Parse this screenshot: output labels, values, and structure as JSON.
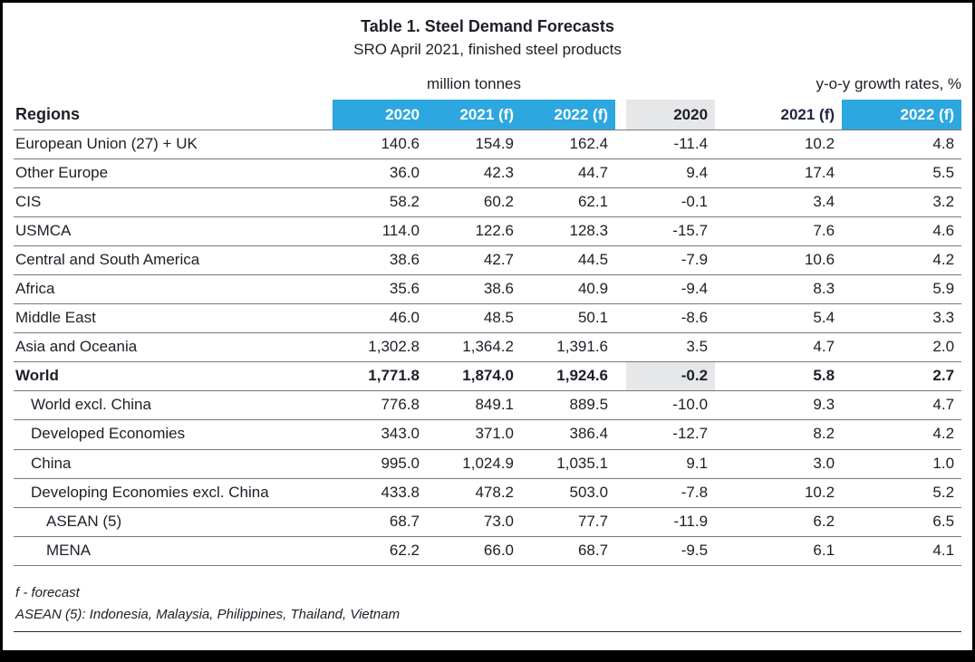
{
  "chart_data": {
    "type": "table",
    "title": "Table 1. Steel Demand Forecasts",
    "subtitle": "SRO April 2021, finished steel products",
    "regions_label": "Regions",
    "group_headers": {
      "tonnes": "million tonnes",
      "growth": "y-o-y growth rates, %"
    },
    "tonnes_columns": [
      "2020",
      "2021 (f)",
      "2022 (f)"
    ],
    "growth_columns": [
      "2020",
      "2021 (f)",
      "2022 (f)"
    ],
    "rows": [
      {
        "region": "European Union (27) + UK",
        "indent": 0,
        "bold": false,
        "shade_growth_2020": false,
        "values": [
          "140.6",
          "154.9",
          "162.4",
          "-11.4",
          "10.2",
          "4.8"
        ]
      },
      {
        "region": "Other Europe",
        "indent": 0,
        "bold": false,
        "shade_growth_2020": false,
        "values": [
          "36.0",
          "42.3",
          "44.7",
          "9.4",
          "17.4",
          "5.5"
        ]
      },
      {
        "region": "CIS",
        "indent": 0,
        "bold": false,
        "shade_growth_2020": false,
        "values": [
          "58.2",
          "60.2",
          "62.1",
          "-0.1",
          "3.4",
          "3.2"
        ]
      },
      {
        "region": "USMCA",
        "indent": 0,
        "bold": false,
        "shade_growth_2020": false,
        "values": [
          "114.0",
          "122.6",
          "128.3",
          "-15.7",
          "7.6",
          "4.6"
        ]
      },
      {
        "region": "Central and South America",
        "indent": 0,
        "bold": false,
        "shade_growth_2020": false,
        "values": [
          "38.6",
          "42.7",
          "44.5",
          "-7.9",
          "10.6",
          "4.2"
        ]
      },
      {
        "region": "Africa",
        "indent": 0,
        "bold": false,
        "shade_growth_2020": false,
        "values": [
          "35.6",
          "38.6",
          "40.9",
          "-9.4",
          "8.3",
          "5.9"
        ]
      },
      {
        "region": "Middle East",
        "indent": 0,
        "bold": false,
        "shade_growth_2020": false,
        "values": [
          "46.0",
          "48.5",
          "50.1",
          "-8.6",
          "5.4",
          "3.3"
        ]
      },
      {
        "region": "Asia and Oceania",
        "indent": 0,
        "bold": false,
        "shade_growth_2020": false,
        "values": [
          "1,302.8",
          "1,364.2",
          "1,391.6",
          "3.5",
          "4.7",
          "2.0"
        ]
      },
      {
        "region": "World",
        "indent": 0,
        "bold": true,
        "shade_growth_2020": true,
        "values": [
          "1,771.8",
          "1,874.0",
          "1,924.6",
          "-0.2",
          "5.8",
          "2.7"
        ]
      },
      {
        "region": "World excl. China",
        "indent": 1,
        "bold": false,
        "shade_growth_2020": false,
        "values": [
          "776.8",
          "849.1",
          "889.5",
          "-10.0",
          "9.3",
          "4.7"
        ]
      },
      {
        "region": "Developed Economies",
        "indent": 1,
        "bold": false,
        "shade_growth_2020": false,
        "values": [
          "343.0",
          "371.0",
          "386.4",
          "-12.7",
          "8.2",
          "4.2"
        ]
      },
      {
        "region": "China",
        "indent": 1,
        "bold": false,
        "shade_growth_2020": false,
        "values": [
          "995.0",
          "1,024.9",
          "1,035.1",
          "9.1",
          "3.0",
          "1.0"
        ]
      },
      {
        "region": "Developing Economies excl. China",
        "indent": 1,
        "bold": false,
        "shade_growth_2020": false,
        "values": [
          "433.8",
          "478.2",
          "503.0",
          "-7.8",
          "10.2",
          "5.2"
        ]
      },
      {
        "region": "ASEAN (5)",
        "indent": 2,
        "bold": false,
        "shade_growth_2020": false,
        "values": [
          "68.7",
          "73.0",
          "77.7",
          "-11.9",
          "6.2",
          "6.5"
        ]
      },
      {
        "region": "MENA",
        "indent": 2,
        "bold": false,
        "shade_growth_2020": false,
        "values": [
          "62.2",
          "66.0",
          "68.7",
          "-9.5",
          "6.1",
          "4.1"
        ]
      }
    ],
    "footnotes": [
      "f - forecast",
      "ASEAN (5): Indonesia, Malaysia, Philippines, Thailand, Vietnam"
    ]
  },
  "colors": {
    "header_blue": "#2da7e0",
    "shade_gray": "#e6e7e8",
    "line_gray": "#75787b",
    "border_black": "#000000"
  }
}
